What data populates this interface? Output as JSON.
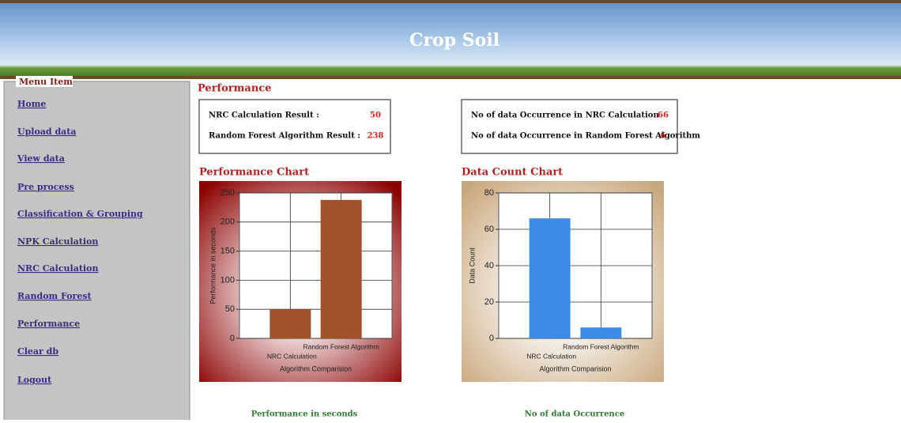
{
  "header": {
    "title": "Crop Soil"
  },
  "menu": {
    "legend": "Menu Item",
    "items": [
      "Home",
      "Upload data",
      "View data",
      "Pre process",
      "Classification & Grouping",
      "NPK Calculation",
      "NRC Calculation",
      "Random Forest",
      "Performance",
      "Clear db",
      "Logout"
    ]
  },
  "performance": {
    "title": "Performance",
    "results": [
      {
        "label": "NRC Calculation Result :",
        "value": 50
      },
      {
        "label": "Random Forest Algorithm Result :",
        "value": 238
      }
    ],
    "occurrences": [
      {
        "label": "No of data Occurrence in NRC Calculation",
        "value": 66
      },
      {
        "label": "No of data Occurrence in Random Forest Algorithm",
        "value": 6
      }
    ]
  },
  "chart_data": [
    {
      "type": "bar",
      "title": "Performance Chart",
      "categories": [
        "NRC Calculation",
        "Random Forest Algorithm"
      ],
      "values": [
        50,
        238
      ],
      "color": "#a0522d",
      "ylim": [
        0,
        250
      ],
      "yticks": [
        0,
        50,
        100,
        150,
        200,
        250
      ],
      "ylabel": "Performance in seconds",
      "xlabel": "Algorithm Comparision",
      "grid": true,
      "caption": "Performance in seconds"
    },
    {
      "type": "bar",
      "title": "Data Count Chart",
      "categories": [
        "NRC Calculation",
        "Random Forest Algorithm"
      ],
      "values": [
        66,
        6
      ],
      "color": "#3d8be8",
      "ylim": [
        0,
        80
      ],
      "yticks": [
        0,
        20,
        40,
        60,
        80
      ],
      "ylabel": "Data Count",
      "xlabel": "Algorithm Comparision",
      "grid": true,
      "caption": "No of data Occurrence"
    }
  ]
}
